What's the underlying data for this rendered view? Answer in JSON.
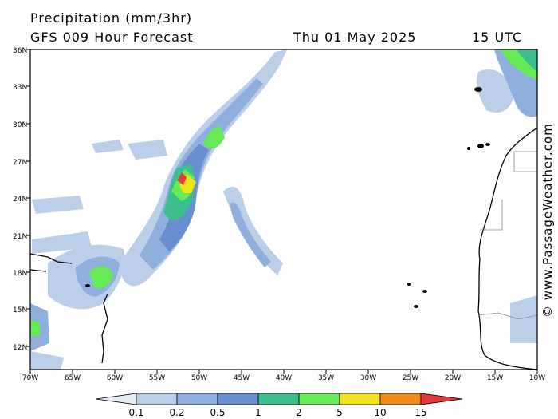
{
  "header": {
    "title": "Precipitation (mm/3hr)",
    "subtitle": "GFS 009 Hour Forecast",
    "date": "Thu 01 May 2025",
    "time": "15 UTC"
  },
  "credit": "© www.PassageWeather.com",
  "map": {
    "lat_labels": [
      "36N",
      "33N",
      "30N",
      "27N",
      "24N",
      "21N",
      "18N",
      "15N",
      "12N"
    ],
    "lon_labels": [
      "70W",
      "65W",
      "60W",
      "55W",
      "50W",
      "45W",
      "40W",
      "35W",
      "30W",
      "25W",
      "20W",
      "15W",
      "10W"
    ]
  },
  "legend": {
    "labels": [
      "0.1",
      "0.2",
      "0.5",
      "1",
      "2",
      "5",
      "10",
      "15"
    ],
    "colors": [
      "#e8eef8",
      "#bccfe9",
      "#8fb0dc",
      "#6a8fd0",
      "#3cbf8e",
      "#66ea55",
      "#f2e21b",
      "#f08a1a",
      "#e23a3a"
    ]
  }
}
